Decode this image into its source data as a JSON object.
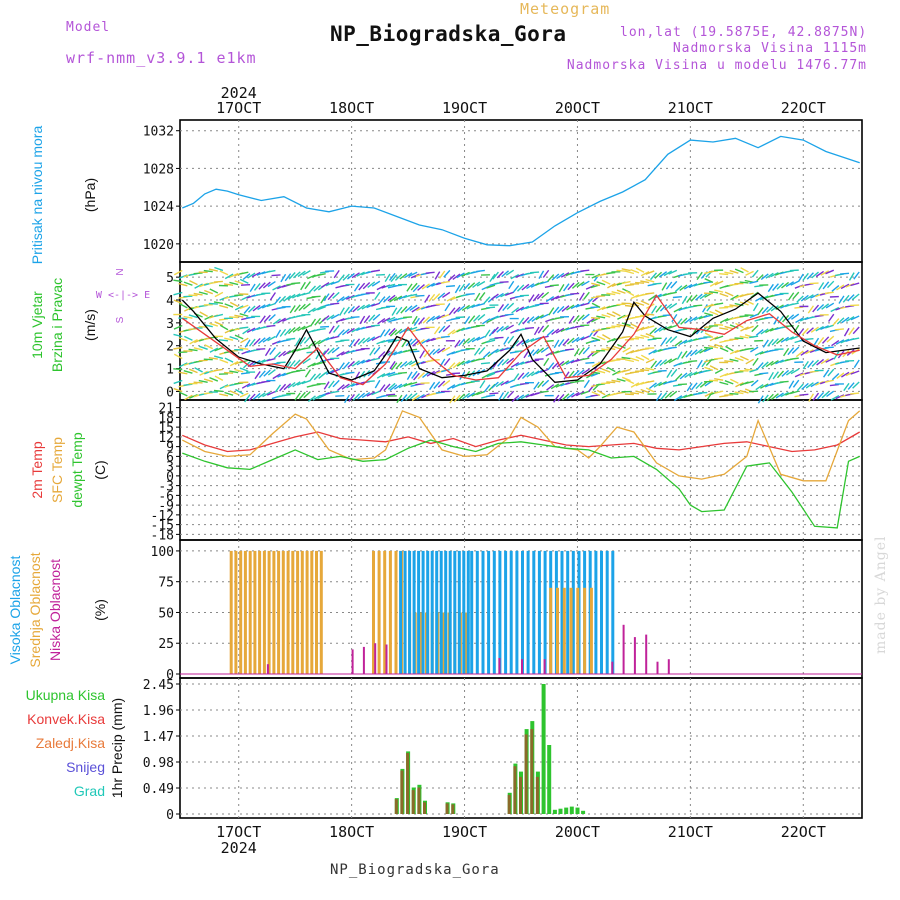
{
  "header": {
    "title": "NP_Biogradska_Gora",
    "model_label": "Model",
    "model_name": "wrf-nmm_v3.9.1 e1km",
    "meteogram_label": "Meteogram",
    "coords": "lon,lat (19.5875E, 42.8875N)",
    "elevation": "Nadmorska Visina 1115m",
    "model_elevation": "Nadmorska Visina u modelu 1476.77m",
    "footer": "NP_Biogradska_Gora",
    "credit": "made by Angel"
  },
  "chart_data": [
    {
      "type": "line",
      "panel": "pressure",
      "ylabel": "(hPa)",
      "side_label": "Pritisak na nivou mora",
      "side_label_color": "#1ca3e8",
      "yticks": [
        1020,
        1024,
        1028,
        1032
      ],
      "ylim": [
        1018.5,
        1032.5
      ],
      "x_ticks": [
        "17OCT",
        "18OCT",
        "19OCT",
        "20OCT",
        "21OCT",
        "22OCT"
      ],
      "x_top_year": "2024",
      "series": [
        {
          "color": "#1ca3e8",
          "x": [
            16.5,
            16.6,
            16.7,
            16.8,
            16.9,
            17.0,
            17.2,
            17.4,
            17.6,
            17.8,
            18.0,
            18.2,
            18.4,
            18.6,
            18.8,
            19.0,
            19.2,
            19.4,
            19.6,
            19.8,
            20.0,
            20.2,
            20.4,
            20.6,
            20.8,
            21.0,
            21.2,
            21.4,
            21.6,
            21.8,
            22.0,
            22.2,
            22.5
          ],
          "values": [
            1023.8,
            1024.3,
            1025.3,
            1025.8,
            1025.6,
            1025.2,
            1024.6,
            1025.0,
            1023.8,
            1023.4,
            1024.0,
            1023.8,
            1022.9,
            1022.0,
            1021.5,
            1020.6,
            1019.9,
            1019.8,
            1020.2,
            1021.9,
            1023.3,
            1024.5,
            1025.5,
            1026.8,
            1029.5,
            1031.0,
            1030.8,
            1031.2,
            1030.2,
            1031.4,
            1031.0,
            1029.8,
            1028.6
          ]
        }
      ]
    },
    {
      "type": "line",
      "panel": "wind",
      "ylabel": "(m/s)",
      "side_labels": [
        "10m Vjetar",
        "Brzina i Pravac"
      ],
      "compass_label": "W <-|-> E",
      "compass_ns": [
        "N",
        "S"
      ],
      "yticks": [
        0,
        1,
        2,
        3,
        4,
        5
      ],
      "ylim": [
        -0.2,
        5.4
      ],
      "series": [
        {
          "name": "speed",
          "color": "#000000",
          "x": [
            16.5,
            16.6,
            16.8,
            17.0,
            17.2,
            17.4,
            17.5,
            17.6,
            17.8,
            18.0,
            18.2,
            18.3,
            18.4,
            18.5,
            18.6,
            18.8,
            19.0,
            19.2,
            19.4,
            19.5,
            19.6,
            19.8,
            20.0,
            20.2,
            20.4,
            20.5,
            20.6,
            20.8,
            21.0,
            21.2,
            21.4,
            21.6,
            21.8,
            22.0,
            22.2,
            22.5
          ],
          "values": [
            4.0,
            3.5,
            2.3,
            1.5,
            1.2,
            1.0,
            1.8,
            2.7,
            0.8,
            0.5,
            0.9,
            1.6,
            2.4,
            2.2,
            1.0,
            0.6,
            0.7,
            0.9,
            1.8,
            2.5,
            1.4,
            0.4,
            0.5,
            1.2,
            2.6,
            3.9,
            3.3,
            2.7,
            2.4,
            3.2,
            3.6,
            4.3,
            3.5,
            2.2,
            1.7,
            1.9
          ]
        },
        {
          "name": "gust",
          "color": "#e83a3a",
          "x": [
            16.5,
            16.7,
            16.9,
            17.1,
            17.3,
            17.5,
            17.7,
            17.9,
            18.1,
            18.3,
            18.5,
            18.7,
            18.9,
            19.1,
            19.3,
            19.5,
            19.7,
            19.9,
            20.1,
            20.3,
            20.5,
            20.7,
            20.9,
            21.1,
            21.3,
            21.5,
            21.7,
            21.9,
            22.1,
            22.3,
            22.5
          ],
          "values": [
            3.2,
            2.5,
            1.8,
            1.1,
            1.2,
            1.0,
            1.9,
            0.6,
            0.3,
            1.2,
            2.8,
            1.5,
            0.7,
            0.5,
            0.6,
            1.7,
            2.4,
            0.6,
            0.7,
            1.4,
            2.5,
            4.2,
            2.8,
            2.7,
            2.5,
            3.1,
            3.4,
            2.6,
            2.0,
            1.6,
            1.8
          ]
        }
      ]
    },
    {
      "type": "line",
      "panel": "temperature",
      "ylabel": "(C)",
      "side_labels": [
        {
          "text": "2m Temp",
          "color": "#e83a3a"
        },
        {
          "text": "SFC Temp",
          "color": "#e6a83a"
        },
        {
          "text": "dewpt Temp",
          "color": "#2ec42e"
        }
      ],
      "yticks": [
        -18,
        -15,
        -12,
        -9,
        -6,
        -3,
        0,
        3,
        6,
        9,
        12,
        15,
        18,
        21
      ],
      "ytick_labels": [
        "-18",
        "-15",
        "-12",
        "-9",
        "-6",
        "-3",
        "0",
        "3",
        "6",
        "9",
        "12",
        "15",
        "18",
        "21"
      ],
      "ylim": [
        -18.5,
        21.5
      ],
      "series": [
        {
          "name": "2m Temp",
          "color": "#e83a3a",
          "x": [
            16.5,
            16.7,
            16.9,
            17.1,
            17.3,
            17.5,
            17.7,
            17.9,
            18.1,
            18.3,
            18.5,
            18.7,
            18.9,
            19.1,
            19.3,
            19.5,
            19.7,
            19.9,
            20.1,
            20.3,
            20.5,
            20.7,
            20.9,
            21.1,
            21.3,
            21.5,
            21.7,
            21.9,
            22.1,
            22.3,
            22.5
          ],
          "values": [
            12.5,
            9.5,
            7.5,
            8.0,
            10.0,
            12.0,
            13.5,
            11.5,
            11.0,
            10.5,
            12.0,
            10.0,
            11.5,
            9.0,
            11.0,
            12.5,
            11.0,
            9.5,
            9.0,
            9.5,
            10.0,
            8.5,
            8.0,
            9.0,
            10.0,
            10.5,
            9.0,
            7.5,
            8.0,
            9.5,
            13.5
          ]
        },
        {
          "name": "SFC Temp",
          "color": "#e6a83a",
          "x": [
            16.5,
            16.7,
            16.9,
            17.1,
            17.3,
            17.5,
            17.6,
            17.8,
            18.0,
            18.2,
            18.3,
            18.45,
            18.6,
            18.8,
            19.0,
            19.2,
            19.4,
            19.5,
            19.65,
            19.8,
            20.0,
            20.1,
            20.2,
            20.35,
            20.5,
            20.7,
            20.9,
            21.1,
            21.3,
            21.5,
            21.6,
            21.8,
            22.0,
            22.2,
            22.4,
            22.5
          ],
          "values": [
            11.0,
            7.5,
            6.0,
            6.5,
            13.0,
            19.0,
            17.5,
            8.0,
            5.0,
            5.5,
            8.0,
            20.0,
            18.0,
            8.0,
            6.0,
            6.5,
            12.0,
            18.0,
            15.0,
            9.0,
            8.0,
            5.5,
            9.0,
            15.0,
            13.5,
            4.0,
            0.0,
            -1.0,
            0.5,
            6.0,
            17.0,
            0.5,
            -1.5,
            -1.5,
            17.0,
            20.0
          ]
        },
        {
          "name": "dewpt Temp",
          "color": "#2ec42e",
          "x": [
            16.5,
            16.7,
            16.9,
            17.1,
            17.3,
            17.5,
            17.7,
            17.9,
            18.1,
            18.3,
            18.5,
            18.7,
            18.9,
            19.1,
            19.3,
            19.5,
            19.7,
            19.9,
            20.1,
            20.3,
            20.5,
            20.7,
            20.9,
            21.0,
            21.1,
            21.3,
            21.5,
            21.7,
            21.9,
            22.1,
            22.3,
            22.4,
            22.5
          ],
          "values": [
            7.0,
            4.5,
            2.5,
            2.0,
            5.0,
            8.0,
            5.0,
            6.0,
            4.5,
            5.0,
            8.5,
            11.0,
            9.0,
            7.5,
            10.0,
            10.5,
            9.5,
            8.5,
            8.0,
            5.5,
            6.0,
            2.0,
            -4.0,
            -9.0,
            -11.0,
            -10.5,
            3.0,
            4.0,
            -5.0,
            -15.5,
            -16.0,
            4.5,
            6.0
          ]
        }
      ]
    },
    {
      "type": "bar",
      "panel": "cloud",
      "ylabel": "(%)",
      "side_labels": [
        {
          "text": "Visoka Oblacnost",
          "color": "#1ca3e8"
        },
        {
          "text": "Srednja Oblacnost",
          "color": "#e6a83a"
        },
        {
          "text": "Niska Oblacnost",
          "color": "#c0229a"
        }
      ],
      "yticks": [
        0,
        25,
        50,
        75,
        100
      ],
      "ylim": [
        0,
        104
      ],
      "series": [
        {
          "name": "mid",
          "color": "#e6a83a",
          "x_range": [
            16.92,
            17.75
          ],
          "value": 100,
          "step": 0.042
        },
        {
          "name": "mid",
          "color": "#e6a83a",
          "x_range": [
            18.18,
            18.45
          ],
          "value": 100,
          "step": 0.05
        },
        {
          "name": "mid",
          "color": "#e6a83a",
          "x_range": [
            18.5,
            19.05
          ],
          "value": 50,
          "step": 0.05
        },
        {
          "name": "high",
          "color": "#1ca3e8",
          "x_range": [
            18.42,
            19.05
          ],
          "value": 100,
          "step": 0.04
        },
        {
          "name": "high",
          "color": "#1ca3e8",
          "x_range": [
            19.05,
            20.35
          ],
          "value": 100,
          "step": 0.05
        },
        {
          "name": "mid",
          "color": "#e6a83a",
          "x_range": [
            19.75,
            20.15
          ],
          "value": 70,
          "step": 0.06
        }
      ],
      "low_bars": {
        "color": "#c0229a",
        "x": [
          17.25,
          18.0,
          18.1,
          18.2,
          18.3,
          19.3,
          19.5,
          19.7,
          20.3,
          20.4,
          20.5,
          20.6,
          20.7,
          20.8
        ],
        "values": [
          8,
          20,
          22,
          25,
          24,
          13,
          12,
          12,
          10,
          40,
          30,
          32,
          10,
          12
        ]
      }
    },
    {
      "type": "bar",
      "panel": "precip",
      "ylabel": "1hr Precip (mm)",
      "side_labels": [
        {
          "text": "Ukupna Kisa",
          "color": "#2ec42e"
        },
        {
          "text": "Konvek.Kisa",
          "color": "#e83a3a"
        },
        {
          "text": "Zaledj.Kisa",
          "color": "#e87a3a"
        },
        {
          "text": "Snijeg",
          "color": "#5a50d8"
        },
        {
          "text": "Grad",
          "color": "#20c8b8"
        }
      ],
      "yticks": [
        0,
        0.49,
        0.98,
        1.47,
        1.96,
        2.45
      ],
      "ytick_labels": [
        "0",
        "0.49",
        "0.98",
        "1.47",
        "1.96",
        "2.45"
      ],
      "ylim": [
        0,
        2.45
      ],
      "x_ticks": [
        "17OCT",
        "18OCT",
        "19OCT",
        "20OCT",
        "21OCT",
        "22OCT"
      ],
      "x_bottom_year": "2024",
      "x": [
        18.4,
        18.45,
        18.5,
        18.55,
        18.6,
        18.65,
        18.85,
        18.9,
        19.4,
        19.45,
        19.5,
        19.55,
        19.6,
        19.65,
        19.7,
        19.75,
        19.8,
        19.85,
        19.9,
        19.95,
        20.0,
        20.05
      ],
      "total": [
        0.3,
        0.85,
        1.18,
        0.5,
        0.55,
        0.25,
        0.22,
        0.2,
        0.4,
        0.95,
        0.8,
        1.6,
        1.75,
        0.8,
        2.45,
        1.3,
        0.08,
        0.1,
        0.12,
        0.14,
        0.12,
        0.06
      ],
      "convective": [
        0.28,
        0.82,
        1.15,
        0.45,
        0.5,
        0.22,
        0.2,
        0.18,
        0.36,
        0.9,
        0.7,
        1.5,
        1.6,
        0.7,
        0.0,
        0.0,
        0.0,
        0.0,
        0.0,
        0.0,
        0.0,
        0.0
      ]
    }
  ]
}
